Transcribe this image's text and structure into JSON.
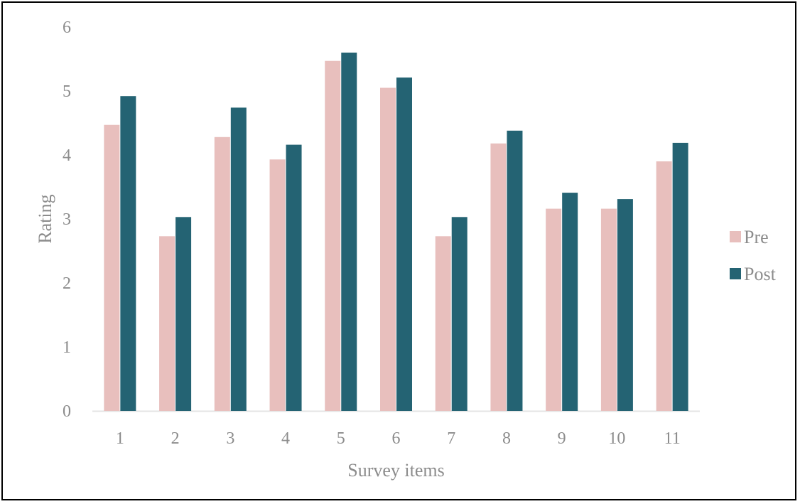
{
  "chart_data": {
    "type": "bar",
    "title": "",
    "xlabel": "Survey items",
    "ylabel": "Rating",
    "ylim": [
      0,
      6
    ],
    "yticks": [
      "0",
      "1",
      "2",
      "3",
      "4",
      "5",
      "6"
    ],
    "categories": [
      "1",
      "2",
      "3",
      "4",
      "5",
      "6",
      "7",
      "8",
      "9",
      "10",
      "11"
    ],
    "series": [
      {
        "name": "Pre",
        "color": "#e8bfbd",
        "values": [
          4.47,
          2.73,
          4.28,
          3.93,
          5.47,
          5.05,
          2.73,
          4.18,
          3.16,
          3.16,
          3.9
        ]
      },
      {
        "name": "Post",
        "color": "#246373",
        "values": [
          4.92,
          3.03,
          4.74,
          4.16,
          5.6,
          5.21,
          3.03,
          4.38,
          3.41,
          3.31,
          4.19
        ]
      }
    ],
    "grid": false,
    "legend": "right",
    "text_color": "#8c8c8c",
    "axis_color": "#e4e4e4"
  }
}
